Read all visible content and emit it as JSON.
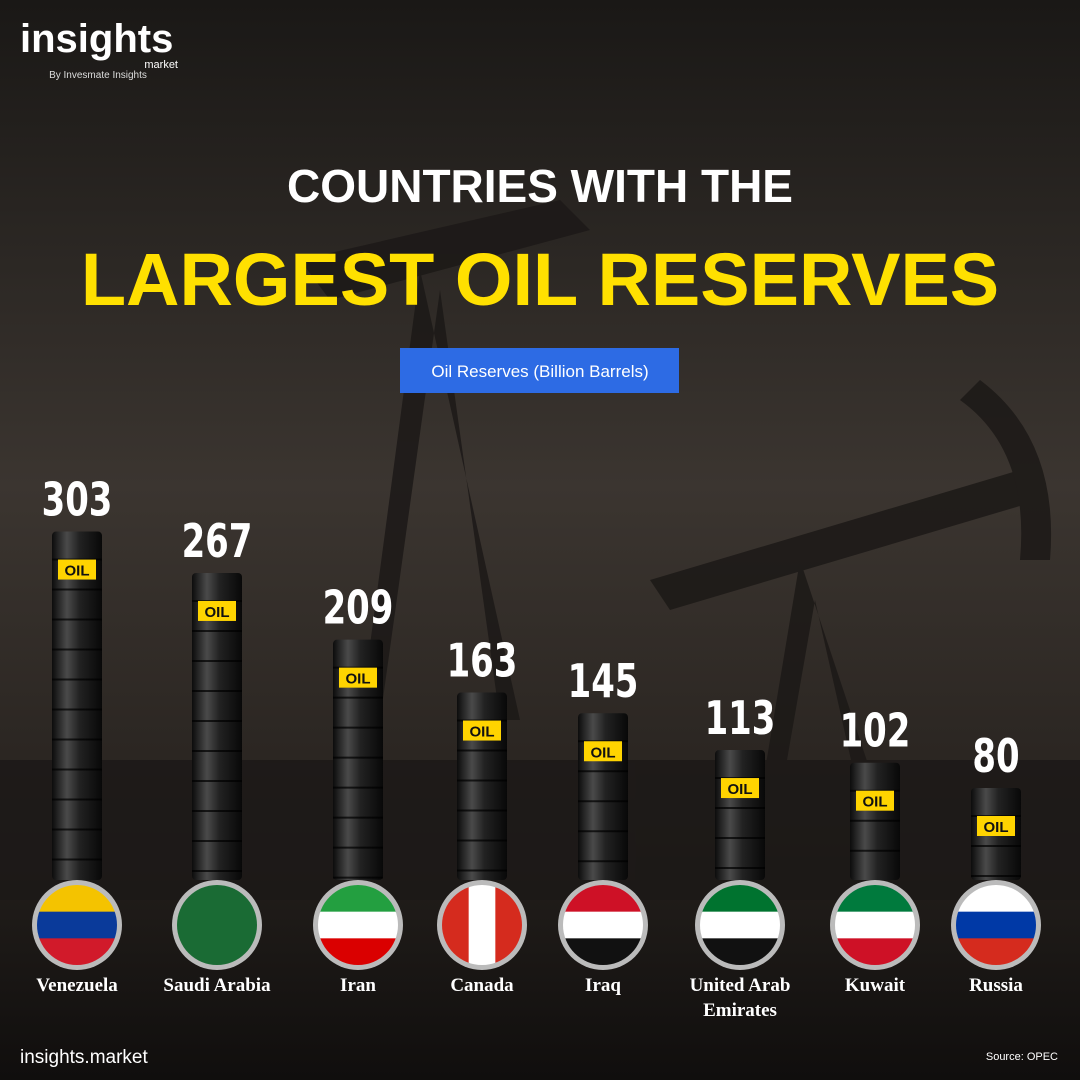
{
  "logo": {
    "name": "insights",
    "sub": "market",
    "tagline": "By Invesmate Insights"
  },
  "chart_data": {
    "type": "bar",
    "title": "COUNTRIES WITH THE",
    "subtitle": "LARGEST OIL RESERVES",
    "barrel_label": "OIL",
    "categories": [
      "Venezuela",
      "Saudi Arabia",
      "Iran",
      "Canada",
      "Iraq",
      "United Arab Emirates",
      "Kuwait",
      "Russia"
    ],
    "series": [
      {
        "name": "Oil Reserves (Billion Barrels)",
        "color": "#2d6be4",
        "values": [
          303,
          267,
          209,
          163,
          145,
          113,
          102,
          80
        ]
      }
    ]
  },
  "footer": {
    "site": "insights.market",
    "source": "Source: OPEC"
  }
}
